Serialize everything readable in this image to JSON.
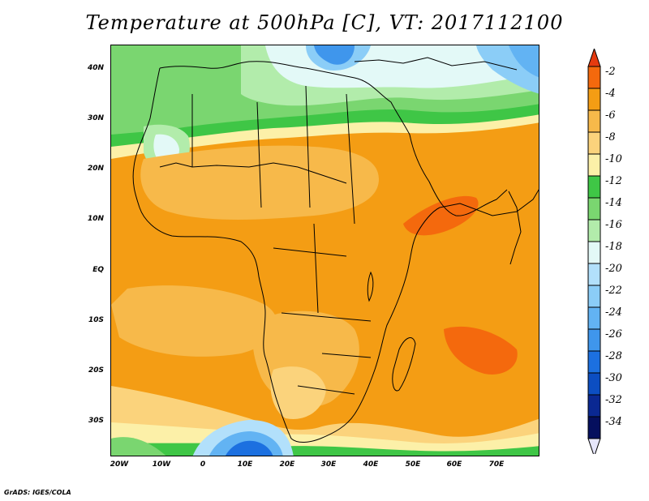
{
  "title": "Temperature at 500hPa [C], VT: 2017112100",
  "credit": "GrADS: IGES/COLA",
  "latitude_labels": [
    "40N",
    "30N",
    "20N",
    "10N",
    "EQ",
    "10S",
    "20S",
    "30S"
  ],
  "longitude_labels": [
    "20W",
    "10W",
    "0",
    "10E",
    "20E",
    "30E",
    "40E",
    "50E",
    "60E",
    "70E"
  ],
  "colorbar": {
    "labels": [
      "-2",
      "-4",
      "-6",
      "-8",
      "-10",
      "-12",
      "-14",
      "-16",
      "-18",
      "-20",
      "-22",
      "-24",
      "-26",
      "-28",
      "-30",
      "-32",
      "-34"
    ],
    "colors": [
      "#e53a0f",
      "#f4690d",
      "#f49d14",
      "#f7b94a",
      "#fbd37c",
      "#fcf0a8",
      "#3fc646",
      "#7ad670",
      "#b2ecab",
      "#e3f9f7",
      "#b2e0fb",
      "#8bcdf7",
      "#62b3f3",
      "#3f96ec",
      "#1c70e0",
      "#0c4ec2",
      "#0a2892",
      "#050f5e",
      "#e6e6fb"
    ]
  },
  "map": {
    "region": "Africa",
    "lon_range": [
      -22,
      80
    ],
    "lat_range": [
      -37,
      45
    ],
    "variable": "Temperature at 500hPa",
    "units": "C",
    "valid_time": "2017112100"
  }
}
